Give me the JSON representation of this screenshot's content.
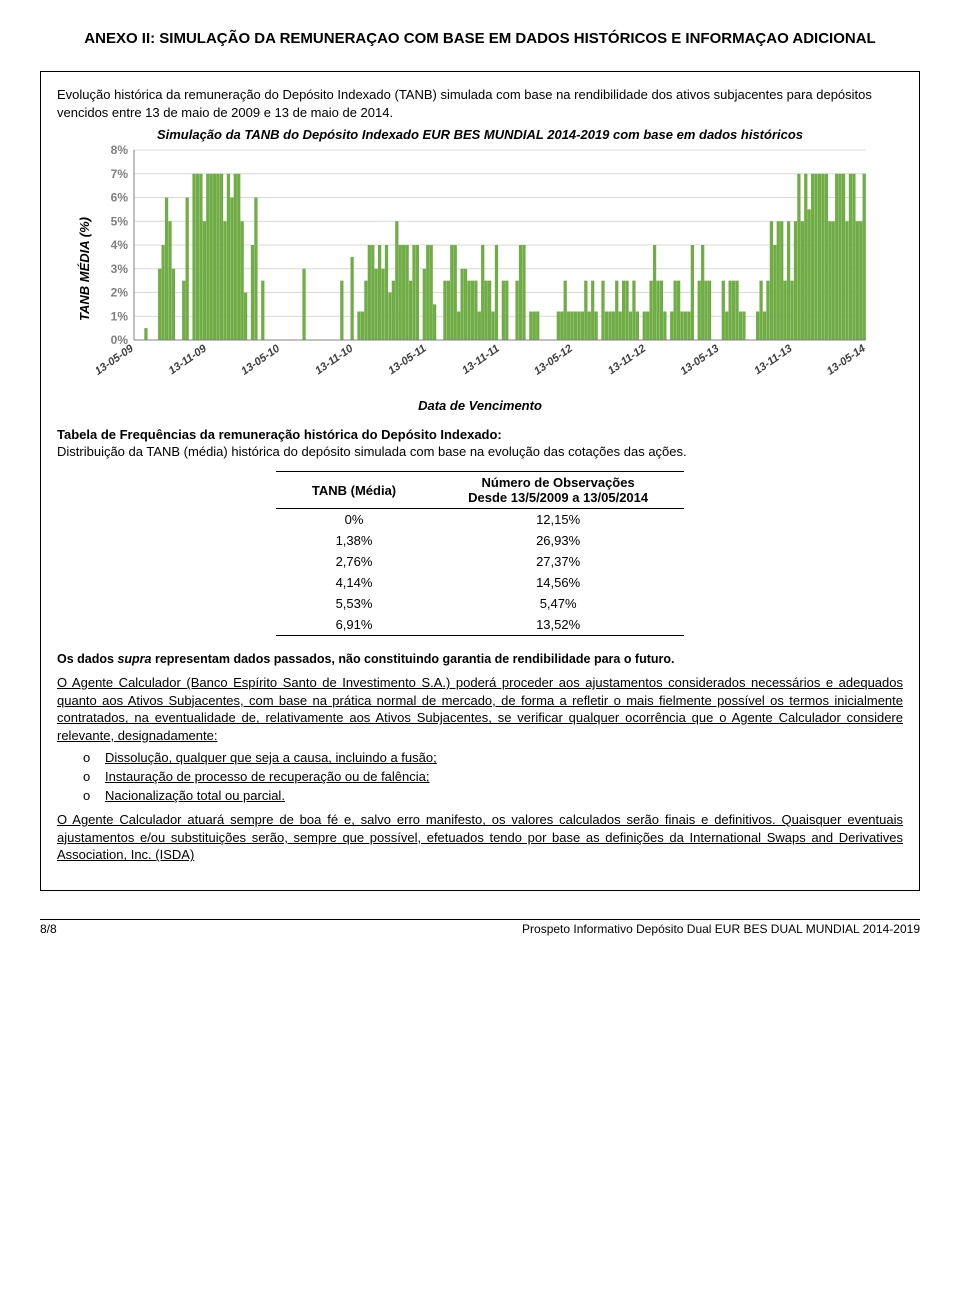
{
  "page_title": "ANEXO II: SIMULAÇÃO DA REMUNERAÇAO COM BASE EM DADOS HISTÓRICOS E INFORMAÇAO ADICIONAL",
  "intro": "Evolução histórica da remuneração do Depósito Indexado (TANB) simulada com base na rendibilidade dos ativos subjacentes para depósitos vencidos entre 13 de maio de 2009 e 13 de maio de 2014.",
  "chart": {
    "title": "Simulação da TANB do Depósito Indexado EUR BES MUNDIAL 2014-2019 com base em dados históricos",
    "y_label": "TANB MÉDIA (%)",
    "x_label": "Data de Vencimento",
    "type": "bar",
    "bar_color": "#70ad47",
    "grid_color": "#d9d9d9",
    "axis_color": "#808080",
    "tick_font_color": "#808080",
    "background_color": "#ffffff",
    "ylim": [
      0,
      8
    ],
    "ytick_step": 1,
    "y_tick_labels": [
      "0%",
      "1%",
      "2%",
      "3%",
      "4%",
      "5%",
      "6%",
      "7%",
      "8%"
    ],
    "x_tick_labels": [
      "13-05-09",
      "13-11-09",
      "13-05-10",
      "13-11-10",
      "13-05-11",
      "13-11-11",
      "13-05-12",
      "13-11-12",
      "13-05-13",
      "13-11-13",
      "13-05-14"
    ],
    "values": [
      0,
      0,
      0,
      0.5,
      0,
      0,
      0,
      3,
      4,
      6,
      5,
      3,
      0,
      0,
      2.5,
      6,
      0,
      7,
      7,
      7,
      5,
      7,
      7,
      7,
      7,
      7,
      5,
      7,
      6,
      7,
      7,
      5,
      2,
      0,
      4,
      6,
      0,
      2.5,
      0,
      0,
      0,
      0,
      0,
      0,
      0,
      0,
      0,
      0,
      0,
      3,
      0,
      0,
      0,
      0,
      0,
      0,
      0,
      0,
      0,
      0,
      2.5,
      0,
      0,
      3.5,
      0,
      1.2,
      1.2,
      2.5,
      4,
      4,
      3,
      4,
      3,
      4,
      2,
      2.5,
      5,
      4,
      4,
      4,
      2.5,
      4,
      4,
      0,
      3,
      4,
      4,
      1.5,
      0,
      0,
      2.5,
      2.5,
      4,
      4,
      1.2,
      3,
      3,
      2.5,
      2.5,
      2.5,
      1.2,
      4,
      2.5,
      2.5,
      1.2,
      4,
      0,
      2.5,
      2.5,
      0,
      0,
      2.5,
      4,
      4,
      0,
      1.2,
      1.2,
      1.2,
      0,
      0,
      0,
      0,
      0,
      1.2,
      1.2,
      2.5,
      1.2,
      1.2,
      1.2,
      1.2,
      1.2,
      2.5,
      1.2,
      2.5,
      1.2,
      0,
      2.5,
      1.2,
      1.2,
      1.2,
      2.5,
      1.2,
      2.5,
      2.5,
      1.2,
      2.5,
      1.2,
      0,
      1.2,
      1.2,
      2.5,
      4,
      2.5,
      2.5,
      1.2,
      0,
      1.2,
      2.5,
      2.5,
      1.2,
      1.2,
      1.2,
      4,
      0,
      2.5,
      4,
      2.5,
      2.5,
      0,
      0,
      0,
      2.5,
      1.2,
      2.5,
      2.5,
      2.5,
      1.2,
      1.2,
      0,
      0,
      0,
      1.2,
      2.5,
      1.2,
      2.5,
      5,
      4,
      5,
      5,
      2.5,
      5,
      2.5,
      5,
      7,
      5,
      7,
      5.5,
      7,
      7,
      7,
      7,
      7,
      5,
      5,
      7,
      7,
      7,
      5,
      7,
      7,
      5,
      5,
      7
    ]
  },
  "freq_section": {
    "heading": "Tabela de Frequências da remuneração histórica do Depósito Indexado:",
    "desc": "Distribuição da TANB (média) histórica do depósito simulada com base na evolução das cotações das ações.",
    "col1_header": "TANB (Média)",
    "col2_header_l1": "Número de Observações",
    "col2_header_l2": "Desde 13/5/2009 a 13/05/2014",
    "rows": [
      {
        "c1": "0%",
        "c2": "12,15%"
      },
      {
        "c1": "1,38%",
        "c2": "26,93%"
      },
      {
        "c1": "2,76%",
        "c2": "27,37%"
      },
      {
        "c1": "4,14%",
        "c2": "14,56%"
      },
      {
        "c1": "5,53%",
        "c2": "5,47%"
      },
      {
        "c1": "6,91%",
        "c2": "13,52%"
      }
    ]
  },
  "note": {
    "prefix": "Os dados ",
    "italic": "supra",
    "suffix": " representam dados passados, não constituindo garantia de rendibilidade para o futuro."
  },
  "para1": "O Agente Calculador (Banco Espírito Santo de Investimento S.A.) poderá proceder aos ajustamentos considerados necessários e adequados quanto aos Ativos Subjacentes, com base na prática normal de mercado, de forma a refletir o mais fielmente possível os termos inicialmente contratados, na eventualidade de, relativamente aos Ativos Subjacentes, se verificar qualquer ocorrência que o Agente Calculador considere relevante, designadamente:",
  "bullets": {
    "b1": "Dissolução, qualquer que seja a causa, incluindo a fusão;",
    "b2": "Instauração de processo de recuperação ou de falência;",
    "b3": "Nacionalização total ou parcial."
  },
  "para2": "O Agente Calculador atuará sempre de boa fé e, salvo erro manifesto, os valores calculados serão finais e definitivos. Quaisquer eventuais ajustamentos e/ou substituições serão, sempre que possível, efetuados tendo por base as definições da International Swaps and Derivatives Association, Inc. (ISDA)",
  "footer": {
    "left": "8/8",
    "right": "Prospeto Informativo Depósito Dual EUR BES DUAL MUNDIAL 2014-2019"
  }
}
